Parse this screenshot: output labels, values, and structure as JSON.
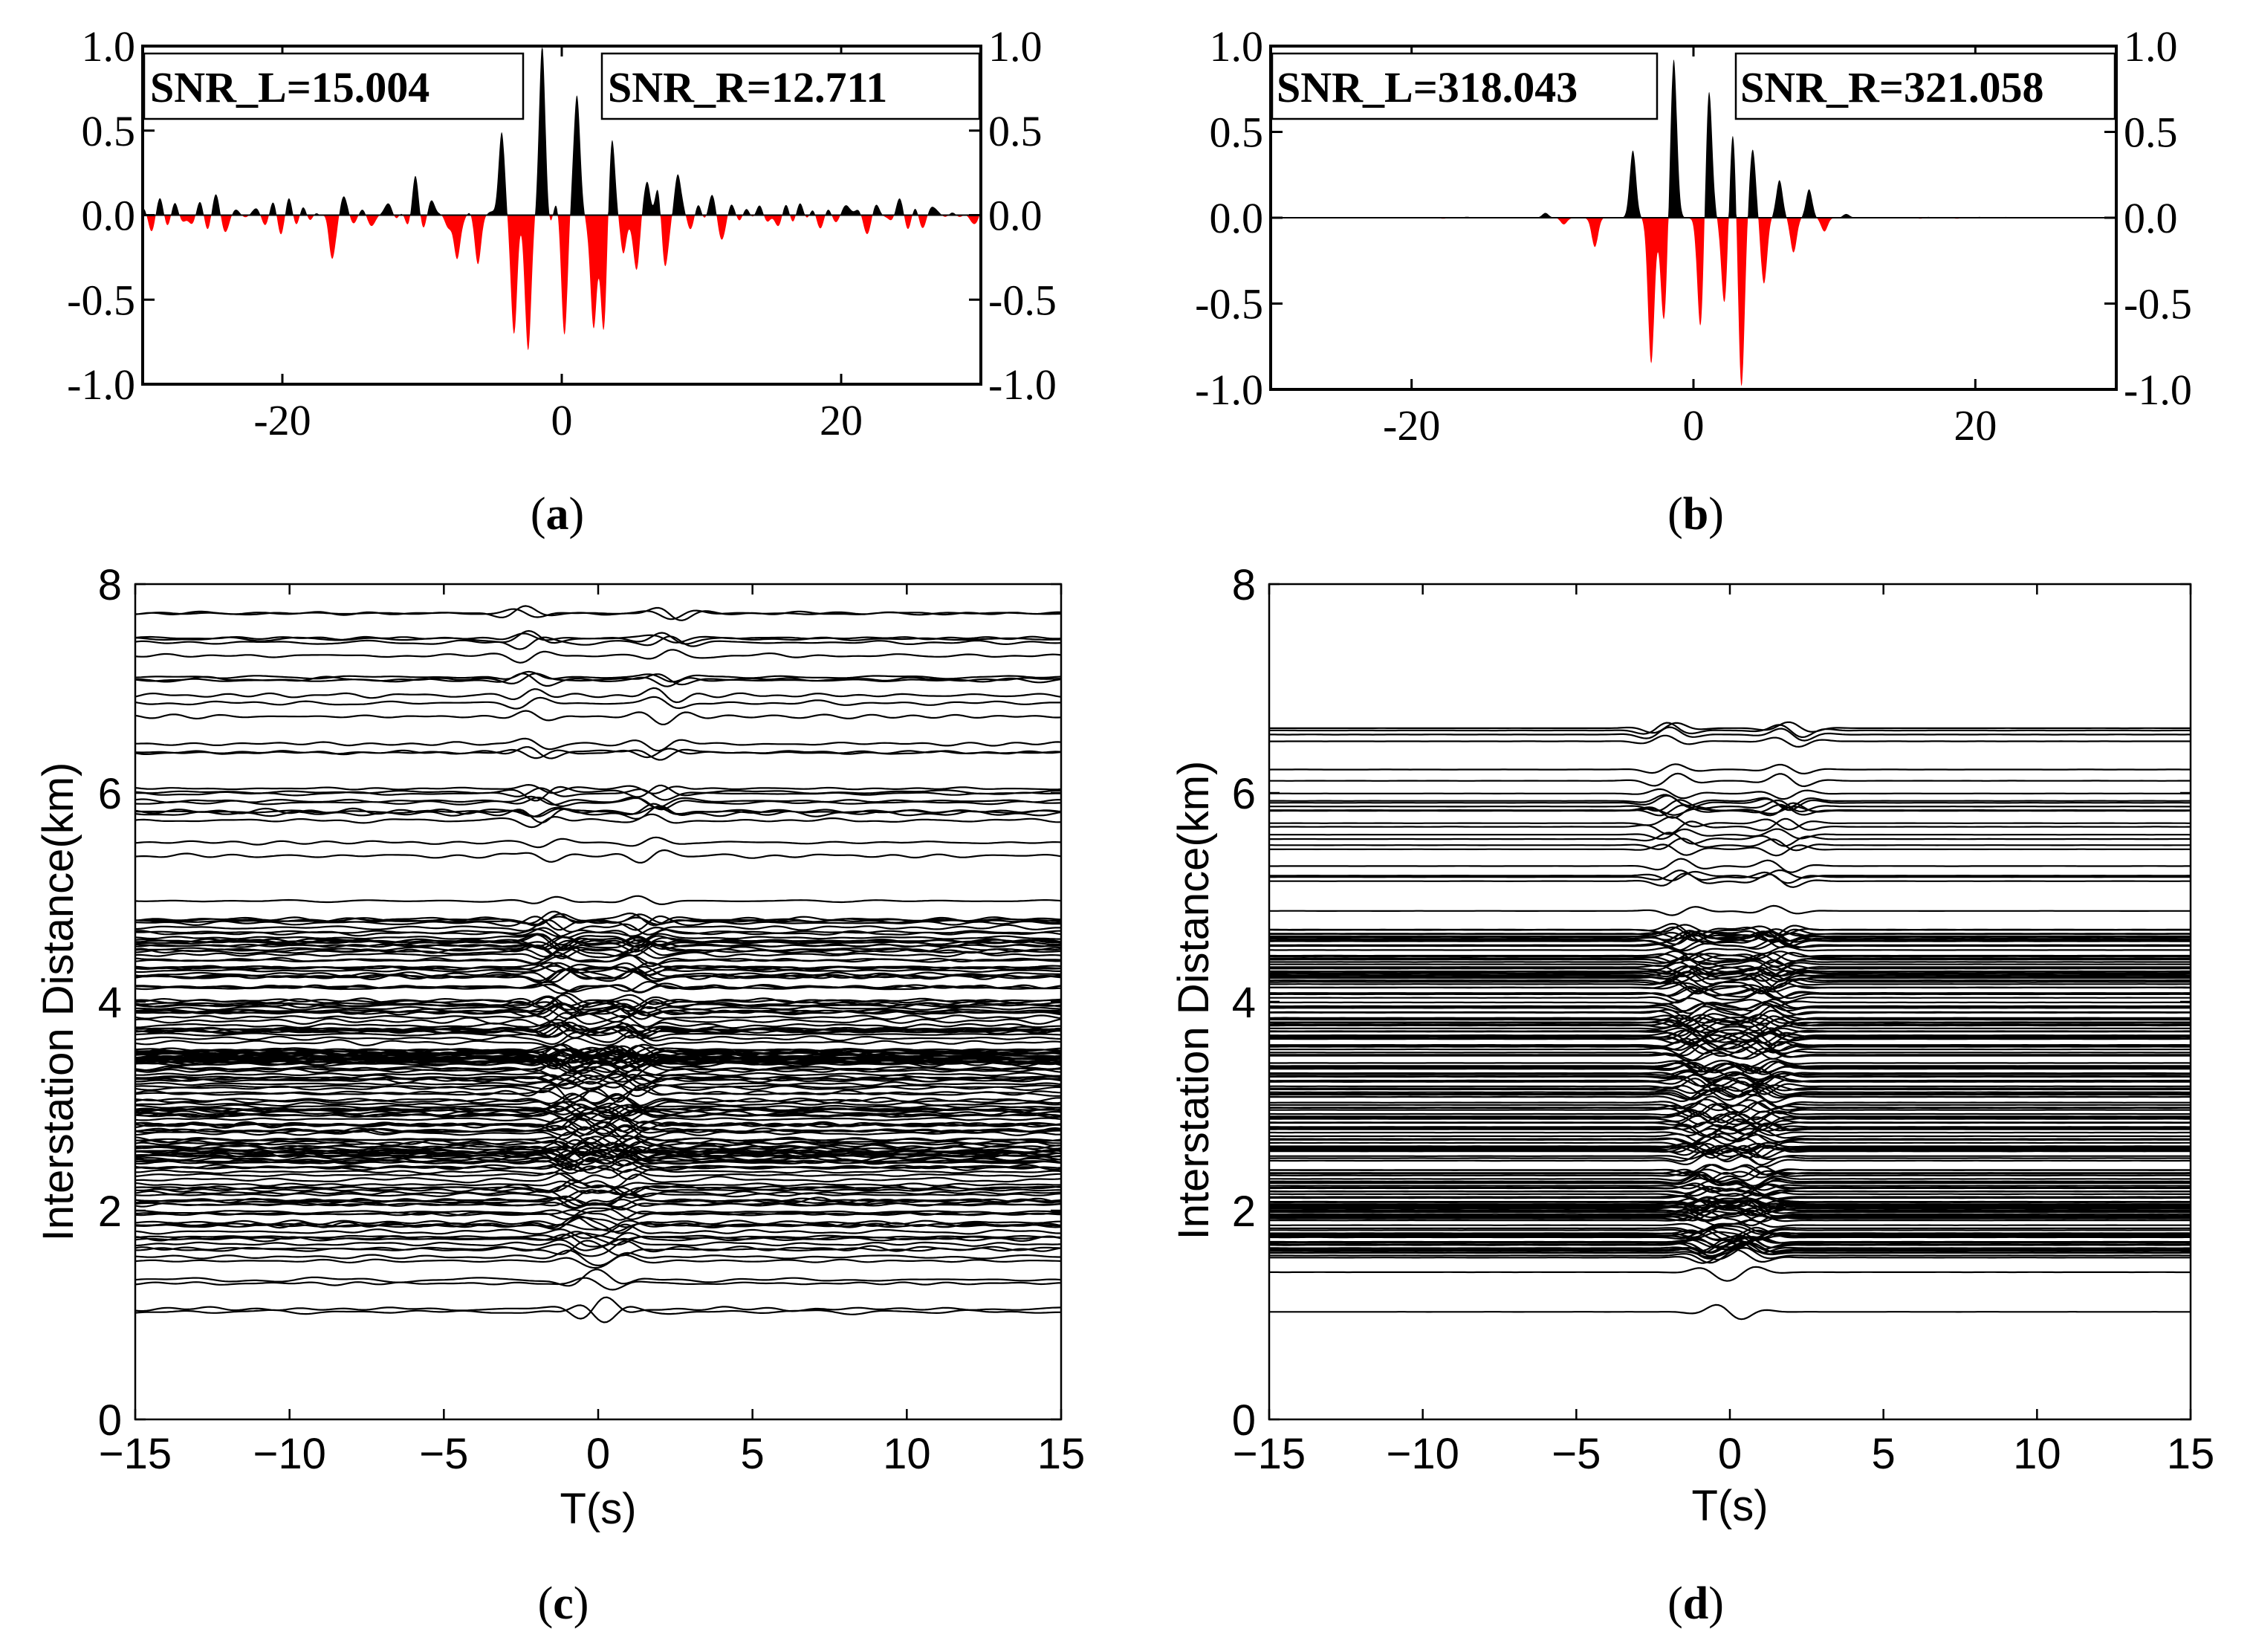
{
  "figure": {
    "colors": {
      "positive": "#000000",
      "negative": "#ff0000",
      "axis": "#000000",
      "background": "#ffffff"
    }
  },
  "chart_data": [
    {
      "panel": "a",
      "caption": "(a)",
      "caption_letter": "a",
      "type": "area",
      "title": "",
      "xlabel": "",
      "ylabel": "",
      "xlim": [
        -30,
        30
      ],
      "ylim": [
        -1.0,
        1.0
      ],
      "x_ticks": [
        -20,
        0,
        20
      ],
      "x_tick_labels": [
        "-20",
        "0",
        "20"
      ],
      "y_ticks": [
        1.0,
        0.5,
        0.0,
        -0.5,
        -1.0
      ],
      "y_tick_labels": [
        "1.0",
        "0.5",
        "0.0",
        "-0.5",
        "-1.0"
      ],
      "y_tick_labels_right": true,
      "annotations": [
        {
          "text": "SNR_L=15.004",
          "position": "top-left"
        },
        {
          "text": "SNR_R=12.711",
          "position": "top-right"
        }
      ],
      "fill_positive": "black",
      "fill_negative": "red",
      "noise_amplitude": 0.11,
      "wave_packets": [
        {
          "center": -4.3,
          "amplitude": 0.5
        },
        {
          "center": -3.4,
          "amplitude": -0.72
        },
        {
          "center": -2.4,
          "amplitude": -0.8
        },
        {
          "center": -1.4,
          "amplitude": 0.98
        },
        {
          "center": 0.2,
          "amplitude": -0.62
        },
        {
          "center": 1.1,
          "amplitude": 0.68
        },
        {
          "center": 2.3,
          "amplitude": -0.62
        },
        {
          "center": 3.0,
          "amplitude": -0.75
        },
        {
          "center": 3.6,
          "amplitude": 0.52
        },
        {
          "center": 4.4,
          "amplitude": -0.3
        },
        {
          "center": 5.4,
          "amplitude": -0.28
        },
        {
          "center": 6.2,
          "amplitude": 0.28
        },
        {
          "center": 7.3,
          "amplitude": -0.25
        },
        {
          "center": 8.3,
          "amplitude": 0.22
        },
        {
          "center": -6.0,
          "amplitude": -0.28
        },
        {
          "center": -7.5,
          "amplitude": -0.3
        },
        {
          "center": -10.5,
          "amplitude": 0.18
        },
        {
          "center": -16.5,
          "amplitude": -0.2
        }
      ]
    },
    {
      "panel": "b",
      "caption": "(b)",
      "caption_letter": "b",
      "type": "area",
      "title": "",
      "xlabel": "",
      "ylabel": "",
      "xlim": [
        -30,
        30
      ],
      "ylim": [
        -1.0,
        1.0
      ],
      "x_ticks": [
        -20,
        0,
        20
      ],
      "x_tick_labels": [
        "-20",
        "0",
        "20"
      ],
      "y_ticks": [
        1.0,
        0.5,
        0.0,
        -0.5,
        -1.0
      ],
      "y_tick_labels": [
        "1.0",
        "0.5",
        "0.0",
        "-0.5",
        "-1.0"
      ],
      "y_tick_labels_right": true,
      "annotations": [
        {
          "text": "SNR_L=318.043",
          "position": "top-left"
        },
        {
          "text": "SNR_R=321.058",
          "position": "top-right"
        }
      ],
      "fill_positive": "black",
      "fill_negative": "red",
      "noise_amplitude": 0.005,
      "wave_packets": [
        {
          "center": -10.5,
          "amplitude": 0.03
        },
        {
          "center": -9.2,
          "amplitude": -0.04
        },
        {
          "center": -7.0,
          "amplitude": -0.17
        },
        {
          "center": -4.3,
          "amplitude": 0.39
        },
        {
          "center": -3.0,
          "amplitude": -0.85
        },
        {
          "center": -2.1,
          "amplitude": -0.6
        },
        {
          "center": -1.4,
          "amplitude": 0.93
        },
        {
          "center": 0.5,
          "amplitude": -0.65
        },
        {
          "center": 1.1,
          "amplitude": 0.75
        },
        {
          "center": 2.2,
          "amplitude": -0.5
        },
        {
          "center": 2.8,
          "amplitude": 0.52
        },
        {
          "center": 3.4,
          "amplitude": -1.0
        },
        {
          "center": 4.2,
          "amplitude": 0.4
        },
        {
          "center": 5.0,
          "amplitude": -0.38
        },
        {
          "center": 6.1,
          "amplitude": 0.22
        },
        {
          "center": 7.1,
          "amplitude": -0.2
        },
        {
          "center": 8.2,
          "amplitude": 0.16
        },
        {
          "center": 9.3,
          "amplitude": -0.08
        },
        {
          "center": 10.8,
          "amplitude": 0.02
        }
      ]
    },
    {
      "panel": "c",
      "caption": "(c)",
      "caption_letter": "c",
      "type": "line",
      "title": "",
      "xlabel": "T(s)",
      "ylabel": "Interstation Distance(km)",
      "xlim": [
        -15,
        15
      ],
      "ylim": [
        0,
        8
      ],
      "x_ticks": [
        -15,
        -10,
        -5,
        0,
        5,
        10,
        15
      ],
      "x_tick_labels": [
        "−15",
        "−10",
        "−5",
        "0",
        "5",
        "10",
        "15"
      ],
      "y_ticks": [
        0,
        2,
        4,
        6,
        8
      ],
      "y_tick_labels": [
        "0",
        "2",
        "4",
        "6",
        "8"
      ],
      "trace_count": 190,
      "distance_range_km": [
        1.03,
        7.72
      ],
      "extra_isolated_traces_km": [
        7.72
      ],
      "group_velocity_km_s": 3.2,
      "trace_amplitude_km": 0.06,
      "noise_level": 0.45
    },
    {
      "panel": "d",
      "caption": "(d)",
      "caption_letter": "d",
      "type": "line",
      "title": "",
      "xlabel": "T(s)",
      "ylabel": "Interstation Distance(km)",
      "xlim": [
        -15,
        15
      ],
      "ylim": [
        0,
        8
      ],
      "x_ticks": [
        -15,
        -10,
        -5,
        0,
        5,
        10,
        15
      ],
      "x_tick_labels": [
        "−15",
        "−10",
        "−5",
        "0",
        "5",
        "10",
        "15"
      ],
      "y_ticks": [
        0,
        2,
        4,
        6,
        8
      ],
      "y_tick_labels": [
        "0",
        "2",
        "4",
        "6",
        "8"
      ],
      "trace_count": 200,
      "distance_range_km": [
        1.03,
        6.62
      ],
      "extra_isolated_traces_km": [],
      "group_velocity_km_s": 3.2,
      "trace_amplitude_km": 0.06,
      "noise_level": 0.02
    }
  ]
}
